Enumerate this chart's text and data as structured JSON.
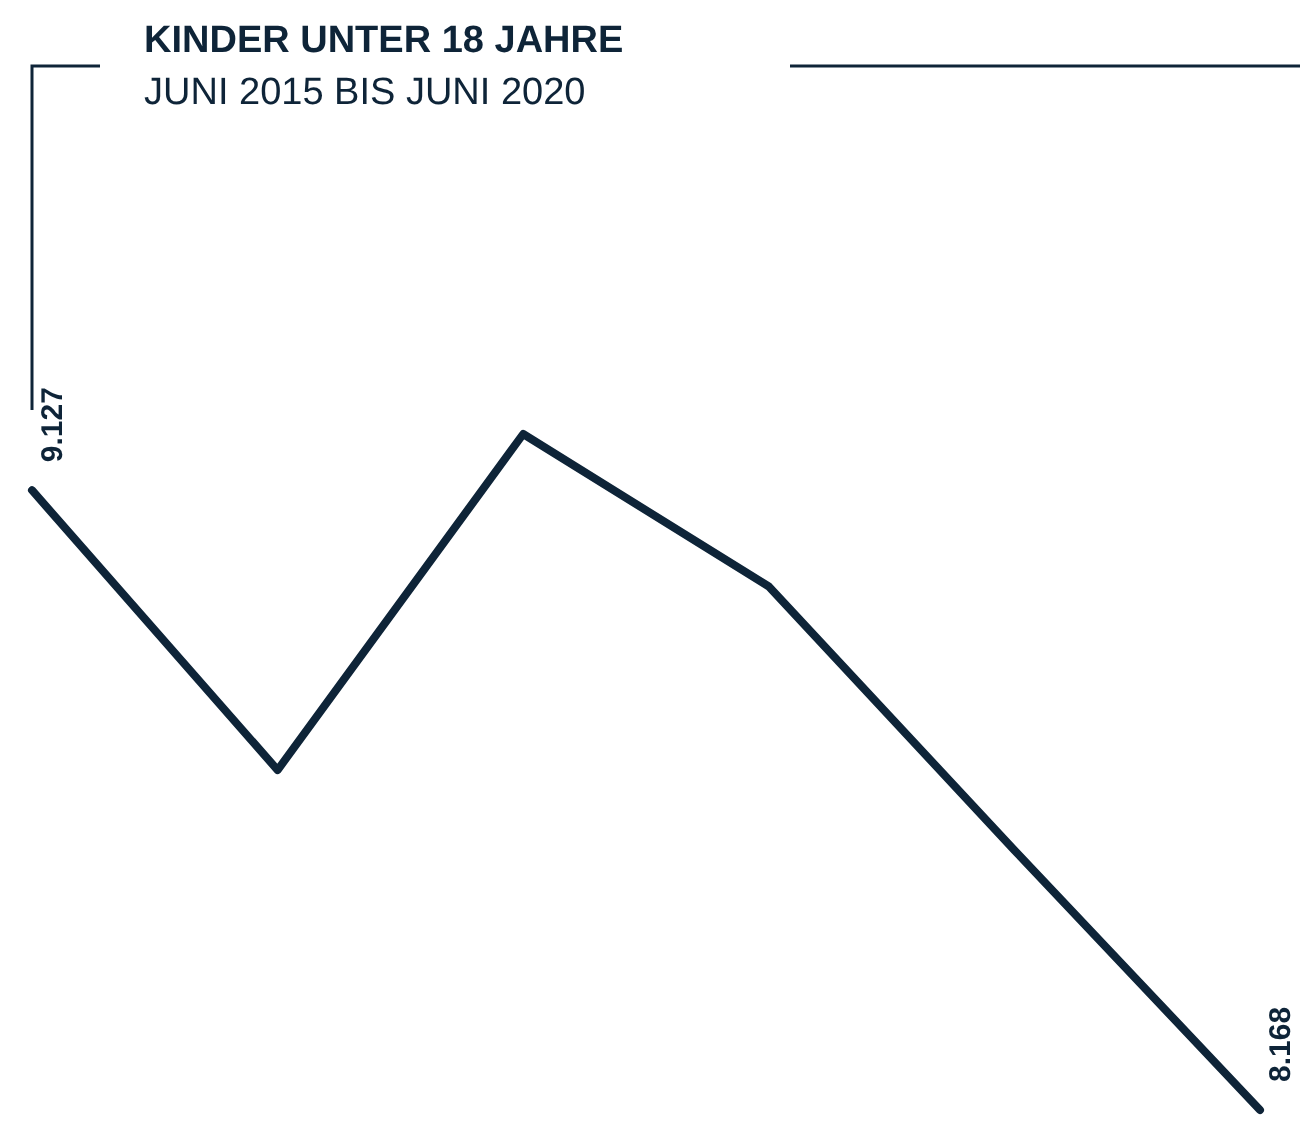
{
  "chart_data": {
    "type": "line",
    "title": "KINDER UNTER 18 JAHRE",
    "subtitle": "JUNI 2015 BIS JUNI 2020",
    "categories": [
      null,
      null,
      null,
      null,
      null,
      null
    ],
    "series": [
      {
        "color": "#0e2438",
        "values": [
          9.127,
          8.694,
          9.214,
          8.978,
          8.57,
          8.168
        ],
        "value_labels": [
          "9.127",
          null,
          null,
          null,
          null,
          "8.168"
        ]
      }
    ],
    "marker": "none",
    "line_style": "solid",
    "legend": false
  }
}
